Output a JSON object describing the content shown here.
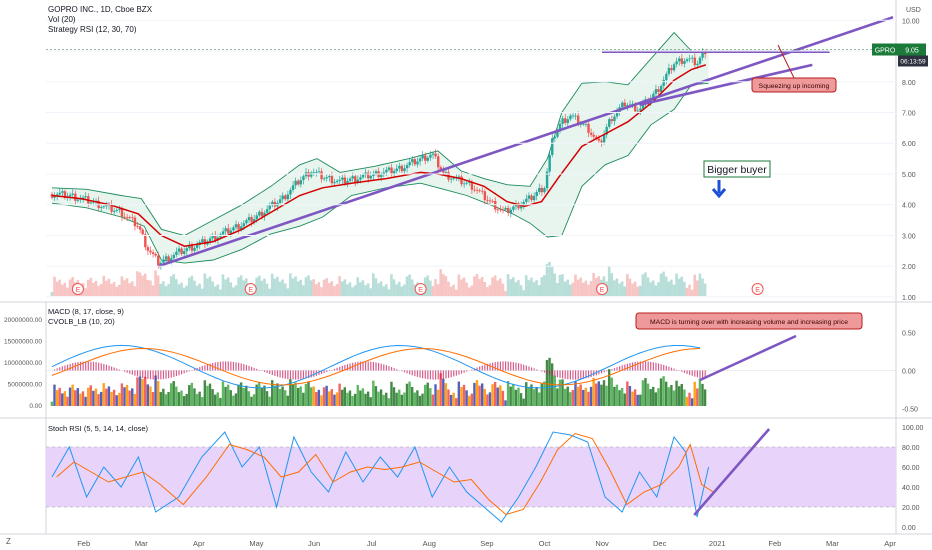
{
  "header": {
    "title": "GOPRO INC., 1D, Cboe BZX",
    "vol_label": "Vol (20)",
    "strategy_label": "Strategy RSI (12, 30, 70)",
    "currency": "USD"
  },
  "colors": {
    "up": "#26a69a",
    "down": "#ef5350",
    "ma": "#d50000",
    "bands": "#1b8a5a",
    "bands_fill": "#e8f5ee",
    "trendline": "#7e57c2",
    "price_tag_bg": "#1b7a3a",
    "callout_bg": "#ef9a9a",
    "callout_border": "#b71c1c",
    "arrow_blue": "#1e4fd8",
    "stoch_band": "#e8d4fb",
    "macd_line": "#2196f3",
    "signal_line": "#ff6d00",
    "hist": "#c2185b"
  },
  "price_tags": {
    "symbol": "GPRO",
    "last": "9.05",
    "countdown": "06:13:59"
  },
  "annotations": {
    "squeezing": "Squeezing up incoming",
    "bigger_buyer": "Bigger buyer",
    "macd_note": "MACD is turning over with increasing volume and increasing price"
  },
  "macd_panel": {
    "label1": "MACD (8, 17, close, 9)",
    "label2": "CVOLB_LB (10, 20)"
  },
  "stoch_panel": {
    "label": "Stoch RSI (5, 5, 14, 14, close)"
  },
  "earnings_marker": "E",
  "corner_z": "Z",
  "chart_data": {
    "type": "candlestick",
    "ylim": [
      0.9,
      10.4
    ],
    "y_ticks": [
      "1.00",
      "2.00",
      "3.00",
      "4.00",
      "5.00",
      "6.00",
      "7.00",
      "8.00",
      "9.00",
      "10.00"
    ],
    "x_ticks": [
      "Feb",
      "Mar",
      "Apr",
      "May",
      "Jun",
      "Jul",
      "Aug",
      "Sep",
      "Oct",
      "Nov",
      "Dec",
      "2021",
      "Feb",
      "Mar",
      "Apr"
    ],
    "close_path": [
      [
        0,
        4.35
      ],
      [
        0.3,
        4.3
      ],
      [
        0.6,
        4.15
      ],
      [
        0.9,
        3.95
      ],
      [
        1.2,
        3.75
      ],
      [
        1.5,
        3.3
      ],
      [
        1.65,
        2.6
      ],
      [
        1.85,
        2.1
      ],
      [
        2.2,
        2.45
      ],
      [
        2.6,
        2.75
      ],
      [
        3.0,
        3.1
      ],
      [
        3.5,
        3.55
      ],
      [
        4.0,
        4.2
      ],
      [
        4.3,
        4.8
      ],
      [
        4.5,
        5.1
      ],
      [
        4.7,
        4.9
      ],
      [
        5.0,
        4.75
      ],
      [
        5.5,
        4.95
      ],
      [
        6.0,
        5.15
      ],
      [
        6.3,
        5.4
      ],
      [
        6.6,
        5.65
      ],
      [
        6.8,
        5.0
      ],
      [
        7.0,
        4.85
      ],
      [
        7.3,
        4.6
      ],
      [
        7.6,
        4.1
      ],
      [
        7.85,
        3.75
      ],
      [
        8.0,
        3.9
      ],
      [
        8.3,
        4.2
      ],
      [
        8.55,
        4.6
      ],
      [
        8.7,
        6.2
      ],
      [
        8.85,
        6.7
      ],
      [
        9.0,
        6.9
      ],
      [
        9.3,
        6.5
      ],
      [
        9.5,
        5.95
      ],
      [
        9.7,
        6.8
      ],
      [
        9.95,
        7.3
      ],
      [
        10.2,
        7.1
      ],
      [
        10.5,
        7.7
      ],
      [
        10.8,
        8.6
      ],
      [
        11.0,
        8.75
      ],
      [
        11.2,
        8.6
      ],
      [
        11.35,
        9.05
      ]
    ],
    "ma20_path": [
      [
        0,
        4.3
      ],
      [
        0.5,
        4.2
      ],
      [
        1.0,
        4.0
      ],
      [
        1.5,
        3.7
      ],
      [
        1.9,
        3.0
      ],
      [
        2.3,
        2.65
      ],
      [
        2.8,
        2.8
      ],
      [
        3.3,
        3.2
      ],
      [
        3.8,
        3.75
      ],
      [
        4.3,
        4.3
      ],
      [
        4.7,
        4.55
      ],
      [
        5.2,
        4.7
      ],
      [
        5.8,
        4.85
      ],
      [
        6.4,
        5.05
      ],
      [
        6.7,
        5.0
      ],
      [
        7.1,
        4.85
      ],
      [
        7.5,
        4.6
      ],
      [
        7.9,
        4.1
      ],
      [
        8.2,
        3.95
      ],
      [
        8.5,
        4.1
      ],
      [
        8.8,
        4.9
      ],
      [
        9.2,
        5.9
      ],
      [
        9.6,
        6.3
      ],
      [
        10.0,
        6.7
      ],
      [
        10.4,
        7.3
      ],
      [
        10.8,
        8.05
      ],
      [
        11.1,
        8.4
      ],
      [
        11.35,
        8.55
      ]
    ],
    "upper_band": [
      [
        0,
        4.55
      ],
      [
        0.6,
        4.5
      ],
      [
        1.2,
        4.3
      ],
      [
        1.55,
        4.2
      ],
      [
        1.9,
        3.2
      ],
      [
        2.3,
        3.0
      ],
      [
        2.8,
        3.5
      ],
      [
        3.3,
        4.0
      ],
      [
        3.8,
        4.6
      ],
      [
        4.3,
        5.3
      ],
      [
        4.6,
        5.5
      ],
      [
        5.0,
        5.05
      ],
      [
        5.6,
        5.25
      ],
      [
        6.2,
        5.5
      ],
      [
        6.7,
        5.75
      ],
      [
        7.1,
        5.1
      ],
      [
        7.5,
        4.85
      ],
      [
        7.9,
        4.65
      ],
      [
        8.3,
        4.6
      ],
      [
        8.6,
        5.5
      ],
      [
        8.85,
        7.0
      ],
      [
        9.2,
        7.95
      ],
      [
        9.6,
        8.0
      ],
      [
        10.0,
        7.9
      ],
      [
        10.4,
        8.75
      ],
      [
        10.8,
        9.6
      ],
      [
        11.1,
        9.0
      ],
      [
        11.4,
        8.95
      ]
    ],
    "lower_band": [
      [
        0,
        4.05
      ],
      [
        0.6,
        3.9
      ],
      [
        1.2,
        3.6
      ],
      [
        1.6,
        3.3
      ],
      [
        1.9,
        2.2
      ],
      [
        2.3,
        2.1
      ],
      [
        2.8,
        2.2
      ],
      [
        3.3,
        2.55
      ],
      [
        3.8,
        3.05
      ],
      [
        4.3,
        3.3
      ],
      [
        4.7,
        3.6
      ],
      [
        5.2,
        4.3
      ],
      [
        5.8,
        4.55
      ],
      [
        6.4,
        4.7
      ],
      [
        6.8,
        4.5
      ],
      [
        7.2,
        4.3
      ],
      [
        7.6,
        4.0
      ],
      [
        8.0,
        3.7
      ],
      [
        8.3,
        3.4
      ],
      [
        8.6,
        2.95
      ],
      [
        8.85,
        3.0
      ],
      [
        9.2,
        4.6
      ],
      [
        9.6,
        5.3
      ],
      [
        10.0,
        5.6
      ],
      [
        10.4,
        6.6
      ],
      [
        10.8,
        7.1
      ],
      [
        11.1,
        7.9
      ],
      [
        11.4,
        7.95
      ]
    ],
    "trendline_lower": [
      [
        1.85,
        2.0
      ],
      [
        14.6,
        10.1
      ]
    ],
    "trendline_upper": [
      [
        10.2,
        7.25
      ],
      [
        13.2,
        8.55
      ]
    ],
    "resistance": [
      [
        9.55,
        8.98
      ],
      [
        13.5,
        8.98
      ]
    ],
    "earnings_x": [
      0.45,
      3.45,
      6.4,
      9.55,
      12.25
    ],
    "macd": {
      "ylim": [
        -0.6,
        0.85
      ],
      "y_ticks": [
        "0.50",
        "0.00",
        "-0.50"
      ],
      "left_ticks": [
        "20000000.00",
        "15000000.00",
        "10000000.00",
        "5000000.00",
        "0.00"
      ]
    },
    "stoch": {
      "ylim": [
        -5,
        105
      ],
      "y_ticks": [
        "100.00",
        "80.00",
        "60.00",
        "40.00",
        "20.00",
        "0.00"
      ],
      "band": [
        20,
        80
      ],
      "k_path": [
        [
          0,
          50
        ],
        [
          0.3,
          80
        ],
        [
          0.6,
          30
        ],
        [
          0.9,
          60
        ],
        [
          1.2,
          40
        ],
        [
          1.5,
          70
        ],
        [
          1.8,
          15
        ],
        [
          2.2,
          30
        ],
        [
          2.6,
          70
        ],
        [
          3.0,
          95
        ],
        [
          3.3,
          60
        ],
        [
          3.6,
          80
        ],
        [
          3.9,
          20
        ],
        [
          4.2,
          90
        ],
        [
          4.5,
          55
        ],
        [
          4.8,
          35
        ],
        [
          5.1,
          75
        ],
        [
          5.4,
          45
        ],
        [
          5.7,
          70
        ],
        [
          6.0,
          50
        ],
        [
          6.3,
          80
        ],
        [
          6.6,
          30
        ],
        [
          6.9,
          60
        ],
        [
          7.2,
          35
        ],
        [
          7.5,
          20
        ],
        [
          7.8,
          5
        ],
        [
          8.1,
          30
        ],
        [
          8.4,
          60
        ],
        [
          8.7,
          95
        ],
        [
          9.0,
          92
        ],
        [
          9.3,
          85
        ],
        [
          9.6,
          30
        ],
        [
          9.9,
          15
        ],
        [
          10.2,
          55
        ],
        [
          10.5,
          30
        ],
        [
          10.8,
          90
        ],
        [
          11.0,
          75
        ],
        [
          11.2,
          10
        ],
        [
          11.4,
          60
        ]
      ],
      "trendline": [
        [
          11.15,
          12
        ],
        [
          12.45,
          98
        ]
      ]
    }
  }
}
